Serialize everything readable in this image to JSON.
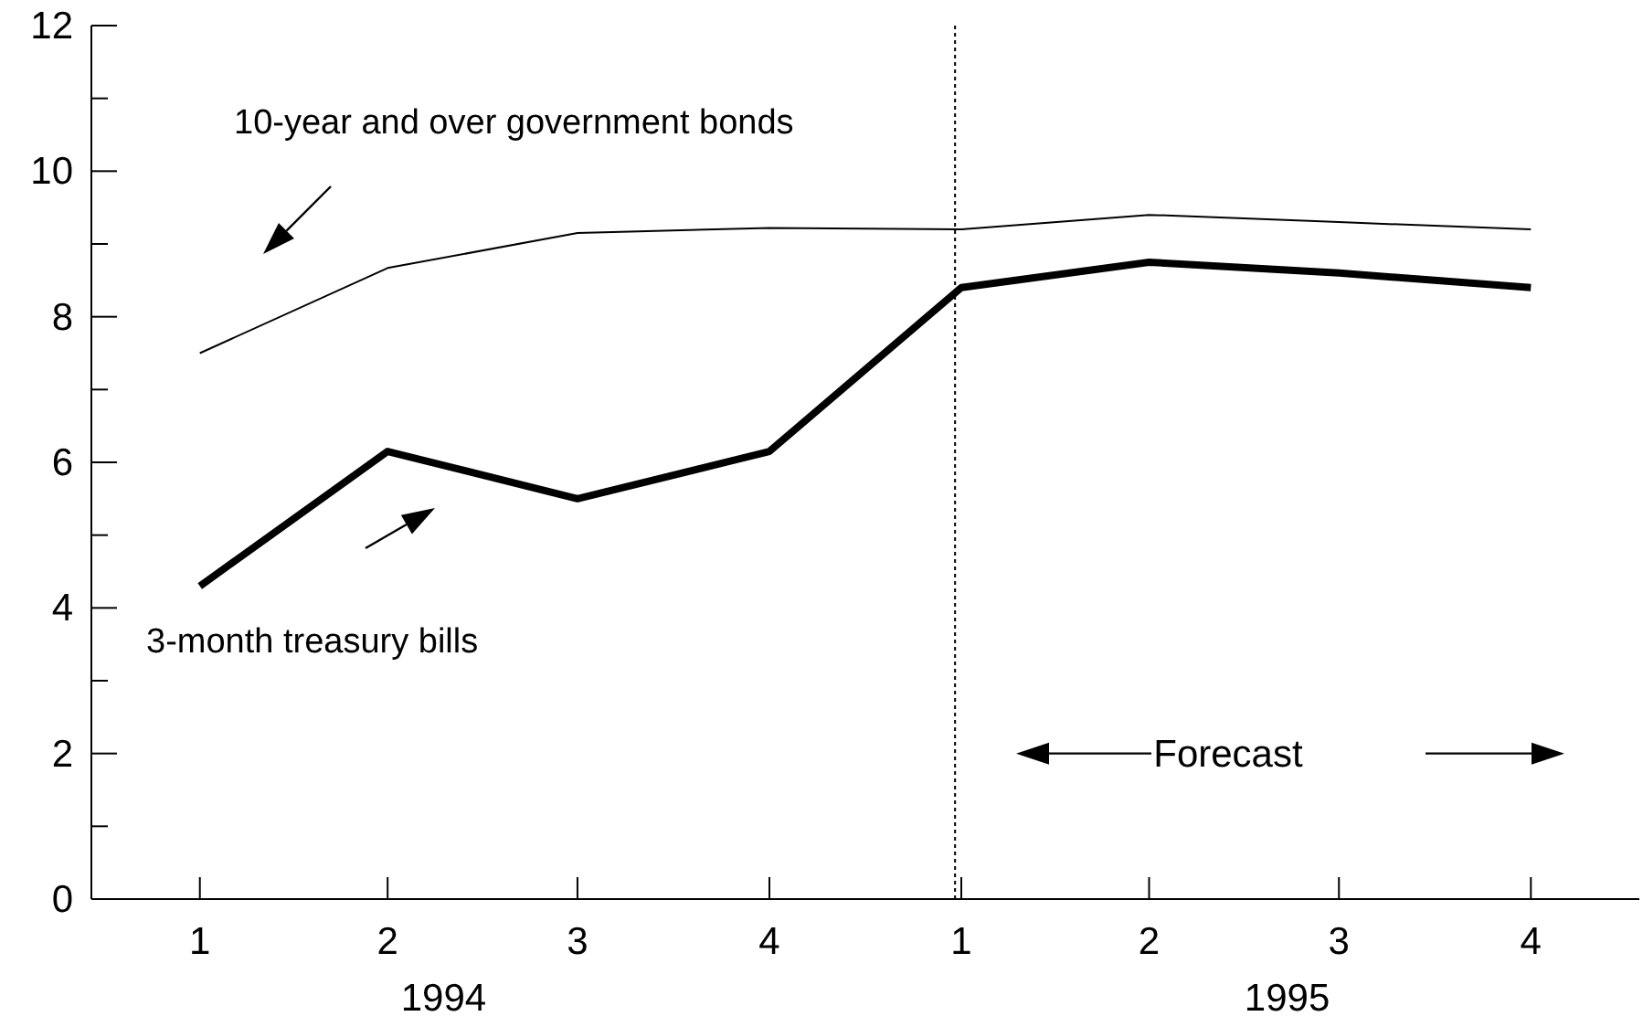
{
  "chart_data": {
    "type": "line",
    "x": [
      "1994-01",
      "1994-04",
      "1994-07",
      "1994-10",
      "1995-01",
      "1995-04",
      "1995-07",
      "1995-10"
    ],
    "xlim": [
      "1993-11-10",
      "1995-11-22"
    ],
    "xticks": [
      {
        "value": "1994-01",
        "label": "1"
      },
      {
        "value": "1994-04",
        "label": "2"
      },
      {
        "value": "1994-07",
        "label": "3"
      },
      {
        "value": "1994-10",
        "label": "4"
      },
      {
        "value": "1995-01",
        "label": "1"
      },
      {
        "value": "1995-04",
        "label": "2"
      },
      {
        "value": "1995-07",
        "label": "3"
      },
      {
        "value": "1995-10",
        "label": "4"
      }
    ],
    "ylim": [
      0,
      12
    ],
    "yticks": [
      0,
      {
        "value": 1,
        "label": null
      },
      2,
      {
        "value": 3,
        "label": null
      },
      4,
      {
        "value": 5,
        "label": null
      },
      6,
      {
        "value": 7,
        "label": null
      },
      8,
      {
        "value": 9,
        "label": null
      },
      10,
      {
        "value": 11,
        "label": null
      },
      12
    ],
    "series": [
      {
        "name": "3-month treasury bills",
        "color": "#000000",
        "values": [
          4.3,
          6.15,
          5.5,
          6.15,
          8.4,
          8.75,
          8.6,
          8.4
        ]
      },
      {
        "name": "10-year and over government bonds",
        "color": "#000000",
        "values": [
          7.5,
          8.67,
          9.15,
          9.22,
          9.2,
          9.4,
          9.3,
          9.2
        ]
      }
    ],
    "ref_lines": [
      {
        "axis": "x",
        "value": "1994-12-29",
        "line_style": "dotted",
        "color": "#000000"
      }
    ],
    "annotations": [
      "1994",
      "1995",
      "Forecast"
    ],
    "marker": "none",
    "line_style": "solid"
  }
}
